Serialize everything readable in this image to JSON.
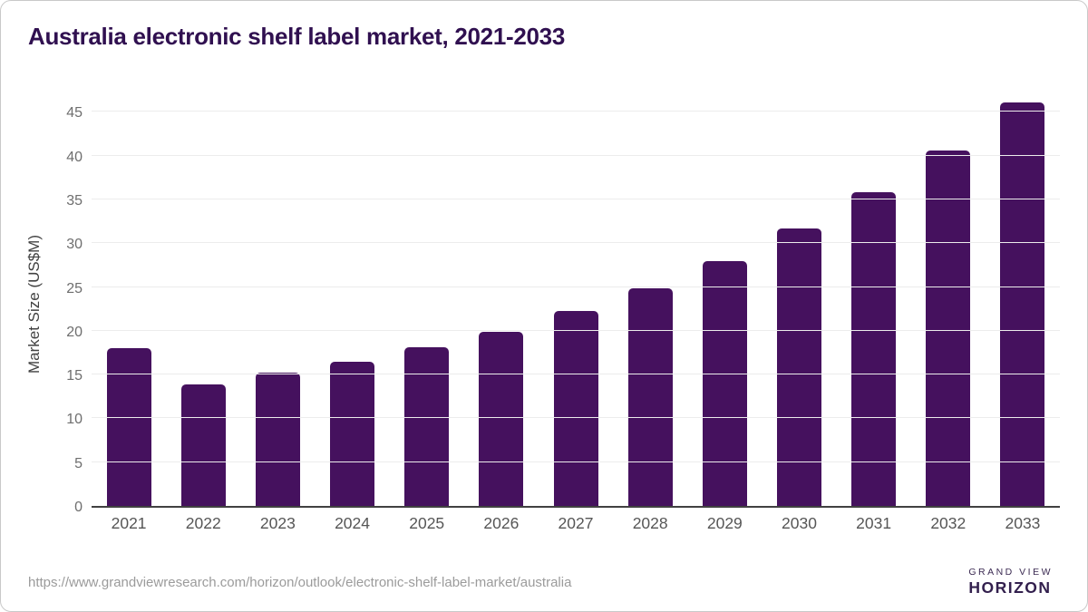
{
  "page": {
    "title": "Australia electronic shelf label market, 2021-2033",
    "source_url": "https://www.grandviewresearch.com/horizon/outlook/electronic-shelf-label-market/australia"
  },
  "brand": {
    "name_top": "GRAND VIEW",
    "name_bottom": "HORIZON",
    "logo_top_color": "#2d1b4a",
    "logo_bottom_color": "#5ac0e8"
  },
  "chart_data": {
    "type": "bar",
    "title": "Australia electronic shelf label market, 2021-2033",
    "categories": [
      "2021",
      "2022",
      "2023",
      "2024",
      "2025",
      "2026",
      "2027",
      "2028",
      "2029",
      "2030",
      "2031",
      "2032",
      "2033"
    ],
    "values": [
      18.0,
      13.9,
      15.2,
      16.5,
      18.1,
      19.9,
      22.3,
      24.9,
      28.0,
      31.7,
      35.8,
      40.6,
      46.1
    ],
    "xlabel": "",
    "ylabel": "Market Size (US$M)",
    "yticks": [
      0,
      5,
      10,
      15,
      20,
      25,
      30,
      35,
      40,
      45
    ],
    "ylim": [
      0,
      46.5
    ],
    "grid": true,
    "legend": false,
    "bar_color": "#45115e",
    "axis_line_color": "#414141",
    "gridline_color": "#ececec"
  }
}
